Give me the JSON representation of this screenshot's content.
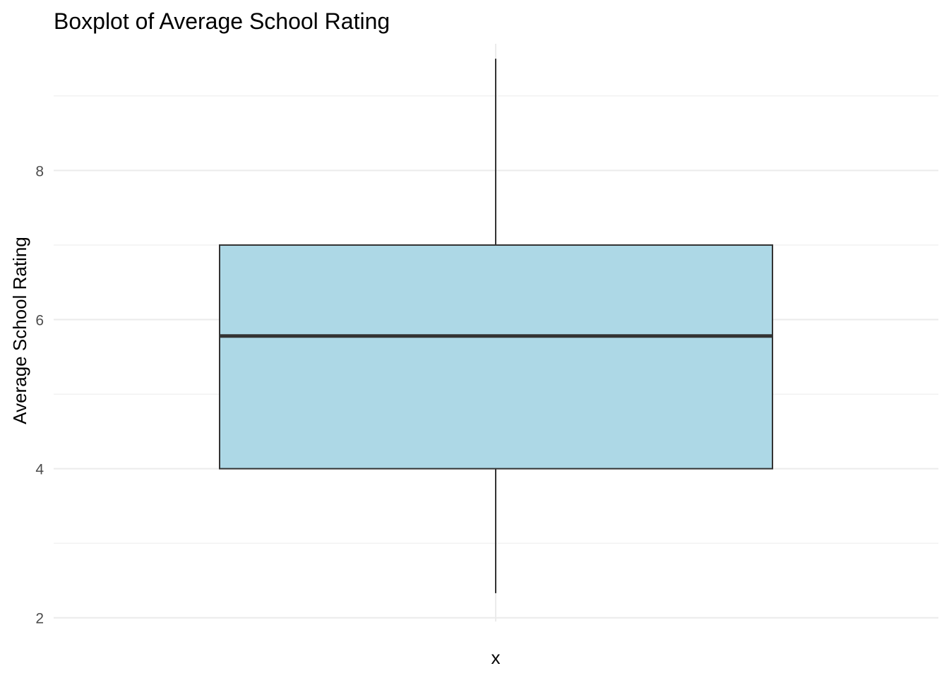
{
  "chart_data": {
    "type": "boxplot",
    "title": "Boxplot of Average School Rating",
    "xlabel": "x",
    "ylabel": "Average School Rating",
    "ylim": [
      1.95,
      9.7
    ],
    "yticks": [
      2,
      4,
      6,
      8
    ],
    "yticklabels": [
      "2",
      "4",
      "6",
      "8"
    ],
    "grid": true,
    "box": {
      "lower_whisker": 2.33,
      "q1": 4.0,
      "median": 5.78,
      "q3": 7.0,
      "upper_whisker": 9.5
    },
    "colors": {
      "fill": "#ADD8E6",
      "outline": "#333333",
      "grid": "#ebebeb"
    }
  }
}
